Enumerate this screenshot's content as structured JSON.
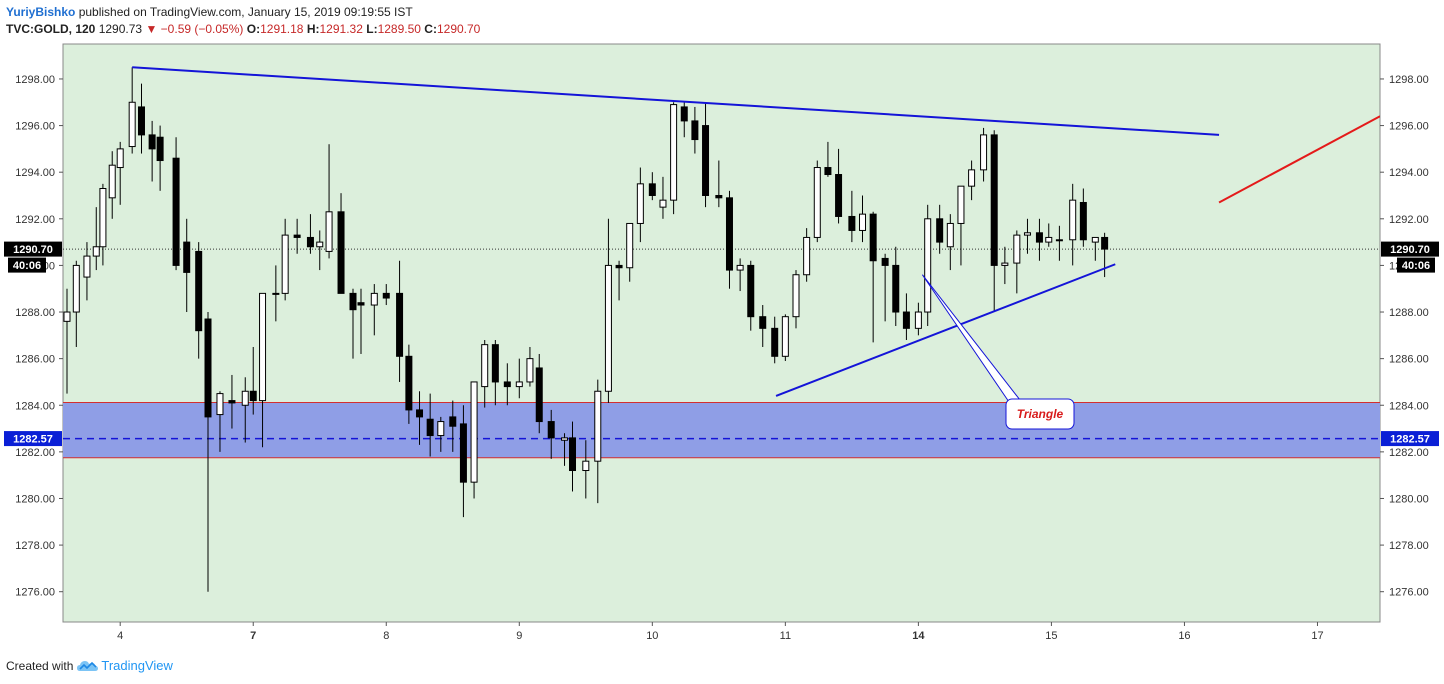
{
  "header": {
    "author": "YuriyBishko",
    "published": "published on TradingView.com, January 15, 2019 09:19:55 IST",
    "symbol": "TVC:GOLD, 120",
    "last": "1290.73",
    "arrow": "▼",
    "change": "−0.59 (−0.05%)",
    "o_label": "O:",
    "o": "1291.18",
    "h_label": "H:",
    "h": "1291.32",
    "l_label": "L:",
    "l": "1289.50",
    "c_label": "C:",
    "c": "1290.70"
  },
  "footer": {
    "created_with": "Created with",
    "brand": "TradingView"
  },
  "colors": {
    "plot_bg": "#dcefdc",
    "zone_fill": "#8f9ee6",
    "zone_border": "#d32f2f",
    "trendline": "#1414d8",
    "red_line": "#e41a1a",
    "callout_text": "#d81b1b",
    "price_label_bg": "#000000",
    "mark_label_bg": "#0a1fd6"
  },
  "chart_data": {
    "type": "candlestick",
    "y_ticks": [
      "1298.00",
      "1296.00",
      "1294.00",
      "1292.00",
      "1290.00",
      "1288.00",
      "1286.00",
      "1284.00",
      "1282.00",
      "1280.00",
      "1278.00",
      "1276.00"
    ],
    "ylim": [
      1274.7,
      1299.5
    ],
    "x_ticks": [
      {
        "label": "4",
        "t": 4.0,
        "bold": false
      },
      {
        "label": "7",
        "t": 5.0,
        "bold": true
      },
      {
        "label": "8",
        "t": 6.0,
        "bold": false
      },
      {
        "label": "9",
        "t": 7.0,
        "bold": false
      },
      {
        "label": "10",
        "t": 8.0,
        "bold": false
      },
      {
        "label": "11",
        "t": 9.0,
        "bold": false
      },
      {
        "label": "14",
        "t": 10.0,
        "bold": true
      },
      {
        "label": "15",
        "t": 11.0,
        "bold": false
      },
      {
        "label": "16",
        "t": 12.0,
        "bold": false
      },
      {
        "label": "17",
        "t": 13.0,
        "bold": false
      }
    ],
    "xlim": [
      3.57,
      13.47
    ],
    "last_price_label": "1290.70",
    "countdown_label": "40:06",
    "marked_level_label": "1282.57",
    "last_price": 1290.7,
    "marked_level": 1282.57,
    "zone": {
      "low": 1281.75,
      "high": 1284.12
    },
    "callout_text": "Triangle",
    "trendlines": [
      {
        "name": "upper",
        "x1": 4.09,
        "y1": 1298.5,
        "x2": 12.26,
        "y2": 1295.6,
        "color": "blue"
      },
      {
        "name": "lower",
        "x1": 8.93,
        "y1": 1284.4,
        "x2": 11.48,
        "y2": 1290.05,
        "color": "blue"
      },
      {
        "name": "red",
        "x1": 12.26,
        "y1": 1292.7,
        "x2": 13.47,
        "y2": 1296.4,
        "color": "red"
      }
    ],
    "callout_pointer": {
      "x": 10.03,
      "y": 1289.6
    },
    "candles": [
      {
        "t": 3.6,
        "o": 1287.6,
        "h": 1289.0,
        "l": 1284.5,
        "c": 1288.0
      },
      {
        "t": 3.67,
        "o": 1288.0,
        "h": 1290.2,
        "l": 1286.5,
        "c": 1290.0
      },
      {
        "t": 3.75,
        "o": 1289.5,
        "h": 1291.0,
        "l": 1288.5,
        "c": 1290.4
      },
      {
        "t": 3.82,
        "o": 1290.4,
        "h": 1292.5,
        "l": 1289.8,
        "c": 1290.8
      },
      {
        "t": 3.87,
        "o": 1290.8,
        "h": 1293.5,
        "l": 1290.0,
        "c": 1293.3
      },
      {
        "t": 3.94,
        "o": 1292.9,
        "h": 1294.9,
        "l": 1292.0,
        "c": 1294.3
      },
      {
        "t": 4.0,
        "o": 1294.2,
        "h": 1295.3,
        "l": 1292.6,
        "c": 1295.0
      },
      {
        "t": 4.09,
        "o": 1295.1,
        "h": 1298.5,
        "l": 1294.8,
        "c": 1297.0
      },
      {
        "t": 4.16,
        "o": 1296.8,
        "h": 1297.8,
        "l": 1294.8,
        "c": 1295.6
      },
      {
        "t": 4.24,
        "o": 1295.6,
        "h": 1296.2,
        "l": 1293.6,
        "c": 1295.0
      },
      {
        "t": 4.3,
        "o": 1295.5,
        "h": 1296.0,
        "l": 1293.2,
        "c": 1294.5
      },
      {
        "t": 4.42,
        "o": 1294.6,
        "h": 1295.5,
        "l": 1289.8,
        "c": 1290.0
      },
      {
        "t": 4.5,
        "o": 1291.0,
        "h": 1292.0,
        "l": 1288.0,
        "c": 1289.7
      },
      {
        "t": 4.59,
        "o": 1290.6,
        "h": 1291.0,
        "l": 1286.0,
        "c": 1287.2
      },
      {
        "t": 4.66,
        "o": 1287.7,
        "h": 1288.0,
        "l": 1276.0,
        "c": 1283.5
      },
      {
        "t": 4.75,
        "o": 1283.6,
        "h": 1284.6,
        "l": 1282.0,
        "c": 1284.5
      },
      {
        "t": 4.84,
        "o": 1284.2,
        "h": 1285.3,
        "l": 1283.0,
        "c": 1284.1
      },
      {
        "t": 4.94,
        "o": 1284.0,
        "h": 1285.2,
        "l": 1282.4,
        "c": 1284.6
      },
      {
        "t": 5.0,
        "o": 1284.6,
        "h": 1286.5,
        "l": 1283.6,
        "c": 1284.2
      },
      {
        "t": 5.07,
        "o": 1284.2,
        "h": 1288.8,
        "l": 1282.2,
        "c": 1288.8
      },
      {
        "t": 5.17,
        "o": 1288.8,
        "h": 1290.0,
        "l": 1287.6,
        "c": 1288.8
      },
      {
        "t": 5.24,
        "o": 1288.8,
        "h": 1292.0,
        "l": 1288.5,
        "c": 1291.3
      },
      {
        "t": 5.33,
        "o": 1291.3,
        "h": 1292.0,
        "l": 1290.5,
        "c": 1291.2
      },
      {
        "t": 5.43,
        "o": 1291.2,
        "h": 1292.2,
        "l": 1290.5,
        "c": 1290.8
      },
      {
        "t": 5.5,
        "o": 1290.8,
        "h": 1291.5,
        "l": 1289.8,
        "c": 1291.0
      },
      {
        "t": 5.57,
        "o": 1290.6,
        "h": 1295.2,
        "l": 1290.3,
        "c": 1292.3
      },
      {
        "t": 5.66,
        "o": 1292.3,
        "h": 1293.1,
        "l": 1288.8,
        "c": 1288.8
      },
      {
        "t": 5.75,
        "o": 1288.8,
        "h": 1289.0,
        "l": 1286.0,
        "c": 1288.1
      },
      {
        "t": 5.81,
        "o": 1288.4,
        "h": 1289.0,
        "l": 1286.2,
        "c": 1288.3
      },
      {
        "t": 5.91,
        "o": 1288.3,
        "h": 1289.2,
        "l": 1287.0,
        "c": 1288.8
      },
      {
        "t": 6.0,
        "o": 1288.8,
        "h": 1289.2,
        "l": 1288.3,
        "c": 1288.6
      },
      {
        "t": 6.1,
        "o": 1288.8,
        "h": 1290.2,
        "l": 1285.0,
        "c": 1286.1
      },
      {
        "t": 6.17,
        "o": 1286.1,
        "h": 1286.6,
        "l": 1283.2,
        "c": 1283.8
      },
      {
        "t": 6.25,
        "o": 1283.8,
        "h": 1284.6,
        "l": 1282.3,
        "c": 1283.5
      },
      {
        "t": 6.33,
        "o": 1283.4,
        "h": 1284.5,
        "l": 1281.8,
        "c": 1282.7
      },
      {
        "t": 6.41,
        "o": 1282.7,
        "h": 1283.5,
        "l": 1282.0,
        "c": 1283.3
      },
      {
        "t": 6.5,
        "o": 1283.5,
        "h": 1284.2,
        "l": 1282.0,
        "c": 1283.1
      },
      {
        "t": 6.58,
        "o": 1283.2,
        "h": 1284.0,
        "l": 1279.2,
        "c": 1280.7
      },
      {
        "t": 6.66,
        "o": 1280.7,
        "h": 1284.8,
        "l": 1280.0,
        "c": 1285.0
      },
      {
        "t": 6.74,
        "o": 1284.8,
        "h": 1286.8,
        "l": 1283.9,
        "c": 1286.6
      },
      {
        "t": 6.82,
        "o": 1286.6,
        "h": 1286.8,
        "l": 1284.0,
        "c": 1285.0
      },
      {
        "t": 6.91,
        "o": 1285.0,
        "h": 1285.8,
        "l": 1284.0,
        "c": 1284.8
      },
      {
        "t": 7.0,
        "o": 1284.8,
        "h": 1286.0,
        "l": 1284.3,
        "c": 1285.0
      },
      {
        "t": 7.08,
        "o": 1285.0,
        "h": 1286.5,
        "l": 1284.8,
        "c": 1286.0
      },
      {
        "t": 7.15,
        "o": 1285.6,
        "h": 1286.2,
        "l": 1282.8,
        "c": 1283.3
      },
      {
        "t": 7.24,
        "o": 1283.3,
        "h": 1283.8,
        "l": 1281.7,
        "c": 1282.6
      },
      {
        "t": 7.34,
        "o": 1282.5,
        "h": 1282.8,
        "l": 1281.4,
        "c": 1282.6
      },
      {
        "t": 7.4,
        "o": 1282.6,
        "h": 1283.3,
        "l": 1280.3,
        "c": 1281.2
      },
      {
        "t": 7.5,
        "o": 1281.2,
        "h": 1282.5,
        "l": 1280.0,
        "c": 1281.6
      },
      {
        "t": 7.59,
        "o": 1281.6,
        "h": 1285.1,
        "l": 1279.8,
        "c": 1284.6
      },
      {
        "t": 7.67,
        "o": 1284.6,
        "h": 1292.0,
        "l": 1284.1,
        "c": 1290.0
      },
      {
        "t": 7.75,
        "o": 1290.0,
        "h": 1290.2,
        "l": 1288.5,
        "c": 1289.9
      },
      {
        "t": 7.83,
        "o": 1289.9,
        "h": 1291.8,
        "l": 1289.3,
        "c": 1291.8
      },
      {
        "t": 7.91,
        "o": 1291.8,
        "h": 1294.2,
        "l": 1291.0,
        "c": 1293.5
      },
      {
        "t": 8.0,
        "o": 1293.5,
        "h": 1294.0,
        "l": 1292.8,
        "c": 1293.0
      },
      {
        "t": 8.08,
        "o": 1292.5,
        "h": 1293.8,
        "l": 1292.0,
        "c": 1292.8
      },
      {
        "t": 8.16,
        "o": 1292.8,
        "h": 1297.0,
        "l": 1292.2,
        "c": 1296.9
      },
      {
        "t": 8.24,
        "o": 1296.8,
        "h": 1297.0,
        "l": 1295.5,
        "c": 1296.2
      },
      {
        "t": 8.32,
        "o": 1296.2,
        "h": 1296.8,
        "l": 1294.8,
        "c": 1295.4
      },
      {
        "t": 8.4,
        "o": 1296.0,
        "h": 1297.0,
        "l": 1292.5,
        "c": 1293.0
      },
      {
        "t": 8.5,
        "o": 1293.0,
        "h": 1294.5,
        "l": 1292.5,
        "c": 1292.9
      },
      {
        "t": 8.58,
        "o": 1292.9,
        "h": 1293.2,
        "l": 1289.0,
        "c": 1289.8
      },
      {
        "t": 8.66,
        "o": 1289.8,
        "h": 1290.3,
        "l": 1288.9,
        "c": 1290.0
      },
      {
        "t": 8.74,
        "o": 1290.0,
        "h": 1290.2,
        "l": 1287.2,
        "c": 1287.8
      },
      {
        "t": 8.83,
        "o": 1287.8,
        "h": 1288.3,
        "l": 1286.5,
        "c": 1287.3
      },
      {
        "t": 8.92,
        "o": 1287.3,
        "h": 1287.8,
        "l": 1285.8,
        "c": 1286.1
      },
      {
        "t": 9.0,
        "o": 1286.1,
        "h": 1287.9,
        "l": 1285.9,
        "c": 1287.8
      },
      {
        "t": 9.08,
        "o": 1287.8,
        "h": 1289.8,
        "l": 1287.3,
        "c": 1289.6
      },
      {
        "t": 9.16,
        "o": 1289.6,
        "h": 1291.6,
        "l": 1289.3,
        "c": 1291.2
      },
      {
        "t": 9.24,
        "o": 1291.2,
        "h": 1294.5,
        "l": 1291.0,
        "c": 1294.2
      },
      {
        "t": 9.32,
        "o": 1294.2,
        "h": 1295.3,
        "l": 1293.8,
        "c": 1293.9
      },
      {
        "t": 9.4,
        "o": 1293.9,
        "h": 1295.0,
        "l": 1291.8,
        "c": 1292.1
      },
      {
        "t": 9.5,
        "o": 1292.1,
        "h": 1293.2,
        "l": 1291.0,
        "c": 1291.5
      },
      {
        "t": 9.58,
        "o": 1291.5,
        "h": 1293.0,
        "l": 1291.0,
        "c": 1292.2
      },
      {
        "t": 9.66,
        "o": 1292.2,
        "h": 1292.3,
        "l": 1286.7,
        "c": 1290.2
      },
      {
        "t": 9.75,
        "o": 1290.3,
        "h": 1290.5,
        "l": 1287.6,
        "c": 1290.0
      },
      {
        "t": 9.83,
        "o": 1290.0,
        "h": 1290.8,
        "l": 1287.4,
        "c": 1288.0
      },
      {
        "t": 9.91,
        "o": 1288.0,
        "h": 1288.8,
        "l": 1286.8,
        "c": 1287.3
      },
      {
        "t": 10.0,
        "o": 1287.3,
        "h": 1288.4,
        "l": 1287.0,
        "c": 1288.0
      },
      {
        "t": 10.07,
        "o": 1288.0,
        "h": 1292.6,
        "l": 1287.4,
        "c": 1292.0
      },
      {
        "t": 10.16,
        "o": 1292.0,
        "h": 1292.6,
        "l": 1290.5,
        "c": 1291.0
      },
      {
        "t": 10.24,
        "o": 1290.8,
        "h": 1292.2,
        "l": 1289.8,
        "c": 1291.8
      },
      {
        "t": 10.32,
        "o": 1291.8,
        "h": 1293.2,
        "l": 1290.0,
        "c": 1293.4
      },
      {
        "t": 10.4,
        "o": 1293.4,
        "h": 1294.5,
        "l": 1292.8,
        "c": 1294.1
      },
      {
        "t": 10.49,
        "o": 1294.1,
        "h": 1295.9,
        "l": 1293.6,
        "c": 1295.6
      },
      {
        "t": 10.57,
        "o": 1295.6,
        "h": 1295.8,
        "l": 1288.0,
        "c": 1290.0
      },
      {
        "t": 10.65,
        "o": 1290.0,
        "h": 1290.8,
        "l": 1289.2,
        "c": 1290.1
      },
      {
        "t": 10.74,
        "o": 1290.1,
        "h": 1291.5,
        "l": 1288.8,
        "c": 1291.3
      },
      {
        "t": 10.82,
        "o": 1291.3,
        "h": 1292.0,
        "l": 1290.5,
        "c": 1291.4
      },
      {
        "t": 10.91,
        "o": 1291.4,
        "h": 1292.0,
        "l": 1290.2,
        "c": 1291.0
      },
      {
        "t": 10.98,
        "o": 1291.0,
        "h": 1291.8,
        "l": 1290.8,
        "c": 1291.2
      },
      {
        "t": 11.06,
        "o": 1291.1,
        "h": 1291.7,
        "l": 1290.2,
        "c": 1291.1
      },
      {
        "t": 11.16,
        "o": 1291.1,
        "h": 1293.5,
        "l": 1290.0,
        "c": 1292.8
      },
      {
        "t": 11.24,
        "o": 1292.7,
        "h": 1293.3,
        "l": 1290.8,
        "c": 1291.1
      },
      {
        "t": 11.33,
        "o": 1291.0,
        "h": 1291.2,
        "l": 1290.2,
        "c": 1291.2
      },
      {
        "t": 11.4,
        "o": 1291.2,
        "h": 1291.4,
        "l": 1289.5,
        "c": 1290.7
      }
    ]
  }
}
